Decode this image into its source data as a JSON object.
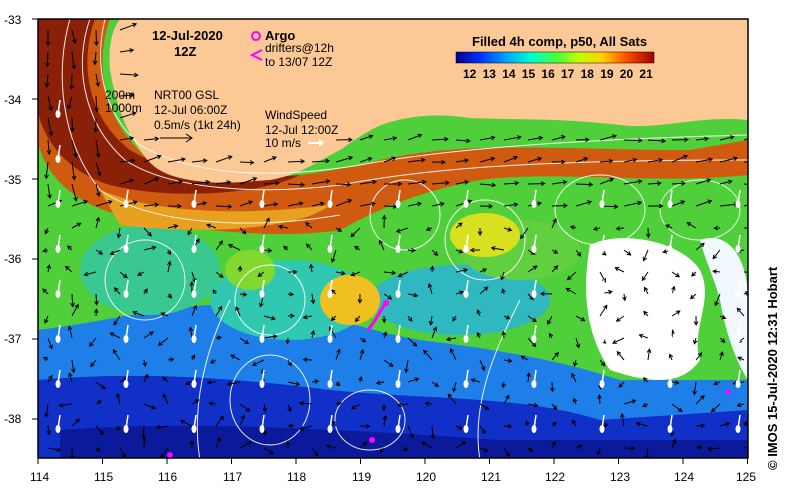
{
  "map": {
    "date": "12-Jul-2020",
    "hour": "12Z",
    "legend_argo": "Argo",
    "legend_drifters_1": "drifters@12h",
    "legend_drifters_2": "to 13/07 12Z",
    "colorbar_title": "Filled 4h comp, p50, All Sats",
    "colorbar_ticks": [
      "12",
      "13",
      "14",
      "15",
      "16",
      "17",
      "18",
      "19",
      "20",
      "21"
    ],
    "depth_200": "200m",
    "depth_1000": "1000m",
    "current_source": "NRT00 GSL",
    "current_time": "12-Jul 06:00Z",
    "current_scale": "0.5m/s (1kt 24h)",
    "wind_title": "WindSpeed",
    "wind_time": "12-Jul 12:00Z",
    "wind_scale": "10 m/s",
    "lat_labels": [
      "-33",
      "-34",
      "-35",
      "-36",
      "-37",
      "-38"
    ],
    "lon_labels": [
      "114",
      "115",
      "116",
      "117",
      "118",
      "119",
      "120",
      "121",
      "122",
      "123",
      "124",
      "125"
    ],
    "credit": "© IMOS 15-Jul-2020 12:31 Hobart",
    "colors": {
      "land": "#fbc896",
      "argo": "#ff00ff",
      "wind": "#ffffff",
      "arrow": "#000000"
    }
  }
}
